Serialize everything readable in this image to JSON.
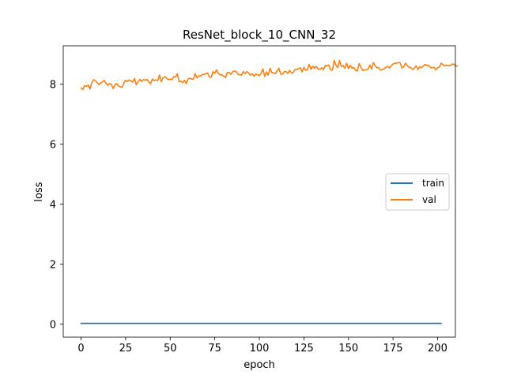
{
  "chart_data": {
    "type": "line",
    "title": "ResNet_block_10_CNN_32",
    "xlabel": "epoch",
    "ylabel": "loss",
    "xlim": [
      -10,
      210
    ],
    "ylim": [
      -0.44,
      9.28
    ],
    "xticks": [
      0,
      25,
      50,
      75,
      100,
      125,
      150,
      175,
      200
    ],
    "yticks": [
      0,
      2,
      4,
      6,
      8
    ],
    "grid": false,
    "legend_position": "center-right",
    "series": [
      {
        "name": "train",
        "color": "#1f77b4",
        "x_start": 0,
        "x_step": 1,
        "values": [
          0.02,
          0.02,
          0.02,
          0.02,
          0.02,
          0.02,
          0.02,
          0.02,
          0.02,
          0.02,
          0.02,
          0.02,
          0.02,
          0.02,
          0.02,
          0.02,
          0.02,
          0.02,
          0.02,
          0.02,
          0.02,
          0.02,
          0.02,
          0.02,
          0.02,
          0.02,
          0.02,
          0.02,
          0.02,
          0.02,
          0.02,
          0.02,
          0.02,
          0.02,
          0.02,
          0.02,
          0.02,
          0.02,
          0.02,
          0.02,
          0.02,
          0.02,
          0.02,
          0.02,
          0.02,
          0.02,
          0.02,
          0.02,
          0.02,
          0.02,
          0.02,
          0.02,
          0.02,
          0.02,
          0.02,
          0.02,
          0.02,
          0.02,
          0.02,
          0.02,
          0.02,
          0.02,
          0.02,
          0.02,
          0.02,
          0.02,
          0.02,
          0.02,
          0.02,
          0.02,
          0.02,
          0.02,
          0.02,
          0.02,
          0.02,
          0.02,
          0.02,
          0.02,
          0.02,
          0.02,
          0.02,
          0.02,
          0.02,
          0.02,
          0.02,
          0.02,
          0.02,
          0.02,
          0.02,
          0.02,
          0.02,
          0.02,
          0.02,
          0.02,
          0.02,
          0.02,
          0.02,
          0.02,
          0.02,
          0.02,
          0.02,
          0.02,
          0.02,
          0.02,
          0.02,
          0.02,
          0.02,
          0.02,
          0.02,
          0.02,
          0.02,
          0.02,
          0.02,
          0.02,
          0.02,
          0.02,
          0.02,
          0.02,
          0.02,
          0.02,
          0.02,
          0.02,
          0.02,
          0.02,
          0.02,
          0.02,
          0.02,
          0.02,
          0.02,
          0.02,
          0.02,
          0.02,
          0.02,
          0.02,
          0.02,
          0.02,
          0.02,
          0.02,
          0.02,
          0.02,
          0.02,
          0.02,
          0.02,
          0.02,
          0.02,
          0.02,
          0.02,
          0.02,
          0.02,
          0.02,
          0.02,
          0.02,
          0.02,
          0.02,
          0.02,
          0.02,
          0.02,
          0.02,
          0.02,
          0.02,
          0.02,
          0.02,
          0.02,
          0.02,
          0.02,
          0.02,
          0.02,
          0.02,
          0.02,
          0.02,
          0.02,
          0.02,
          0.02,
          0.02,
          0.02,
          0.02,
          0.02,
          0.02,
          0.02,
          0.02,
          0.02,
          0.02,
          0.02,
          0.02,
          0.02,
          0.02,
          0.02,
          0.02,
          0.02,
          0.02,
          0.02,
          0.02,
          0.02,
          0.02,
          0.02,
          0.02,
          0.02,
          0.02,
          0.02,
          0.02,
          0.02,
          0.02,
          0.02
        ]
      },
      {
        "name": "val",
        "color": "#ff7f0e",
        "x_start": 0,
        "x_step": 1,
        "values": [
          7.87,
          7.82,
          7.95,
          7.93,
          7.97,
          7.84,
          8.05,
          8.15,
          8.12,
          8.05,
          7.99,
          8.04,
          8.08,
          8.13,
          8.02,
          7.96,
          8.02,
          7.99,
          7.85,
          7.98,
          8.02,
          7.94,
          7.91,
          7.9,
          8.04,
          8.13,
          8.09,
          8.14,
          8.11,
          8.07,
          8.19,
          7.98,
          8.08,
          8.16,
          8.09,
          8.15,
          8.13,
          8.16,
          8.07,
          8.02,
          8.17,
          8.12,
          8.14,
          8.12,
          8.31,
          8.08,
          8.21,
          8.25,
          8.2,
          8.15,
          8.17,
          8.15,
          8.25,
          8.24,
          8.35,
          8.08,
          8.1,
          8.05,
          8.13,
          8.02,
          8.17,
          8.2,
          8.17,
          8.17,
          8.35,
          8.21,
          8.28,
          8.27,
          8.32,
          8.33,
          8.35,
          8.37,
          8.24,
          8.23,
          8.42,
          8.36,
          8.48,
          8.36,
          8.31,
          8.31,
          8.27,
          8.22,
          8.39,
          8.39,
          8.33,
          8.41,
          8.44,
          8.42,
          8.33,
          8.32,
          8.3,
          8.42,
          8.35,
          8.42,
          8.37,
          8.3,
          8.35,
          8.27,
          8.33,
          8.32,
          8.28,
          8.37,
          8.51,
          8.26,
          8.41,
          8.3,
          8.53,
          8.39,
          8.38,
          8.35,
          8.45,
          8.53,
          8.34,
          8.33,
          8.42,
          8.42,
          8.36,
          8.46,
          8.37,
          8.39,
          8.49,
          8.49,
          8.52,
          8.55,
          8.41,
          8.56,
          8.46,
          8.49,
          8.66,
          8.49,
          8.6,
          8.53,
          8.59,
          8.5,
          8.49,
          8.55,
          8.48,
          8.62,
          8.61,
          8.64,
          8.48,
          8.47,
          8.79,
          8.64,
          8.55,
          8.79,
          8.59,
          8.62,
          8.53,
          8.7,
          8.52,
          8.63,
          8.53,
          8.56,
          8.46,
          8.44,
          8.69,
          8.56,
          8.46,
          8.48,
          8.48,
          8.5,
          8.64,
          8.51,
          8.72,
          8.61,
          8.55,
          8.55,
          8.47,
          8.49,
          8.51,
          8.57,
          8.59,
          8.54,
          8.62,
          8.67,
          8.7,
          8.7,
          8.72,
          8.71,
          8.54,
          8.58,
          8.7,
          8.62,
          8.56,
          8.55,
          8.49,
          8.54,
          8.61,
          8.49,
          8.58,
          8.55,
          8.61,
          8.66,
          8.62,
          8.63,
          8.55,
          8.55,
          8.56,
          8.48,
          8.55,
          8.57,
          8.7,
          8.65,
          8.61,
          8.63,
          8.62,
          8.61,
          8.67,
          8.67,
          8.62,
          8.6
        ]
      }
    ]
  }
}
